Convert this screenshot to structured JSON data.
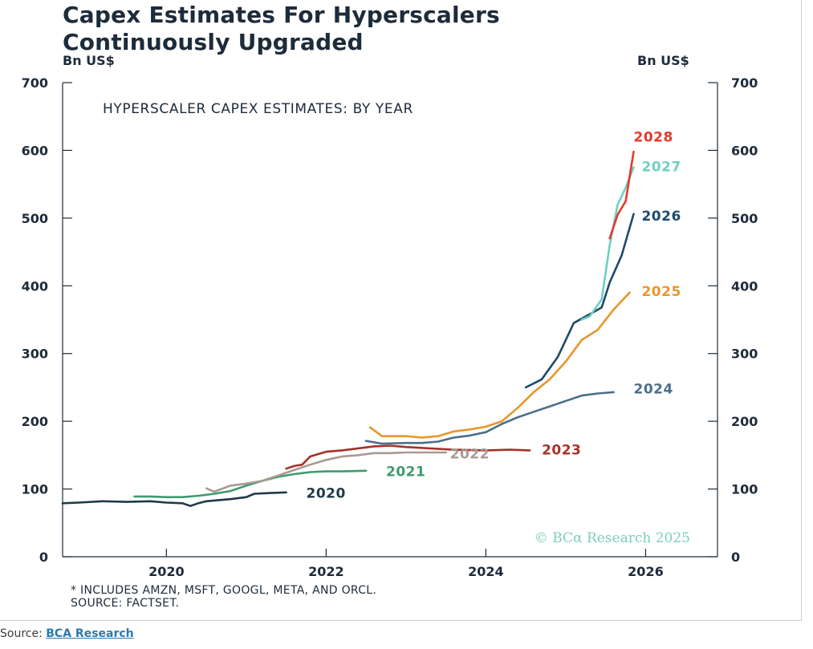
{
  "header": {
    "title_line1": "Capex Estimates For Hyperscalers",
    "title_line2": "Continuously Upgraded",
    "left_unit": "Bn US$",
    "right_unit": "Bn US$"
  },
  "footer": {
    "note_line1": "* INCLUDES AMZN, MSFT, GOOGL, META, AND ORCL.",
    "note_line2": "SOURCE: FACTSET.",
    "source_label": "Source:",
    "source_link": "BCA Research"
  },
  "chart_data": {
    "type": "line",
    "title": "Capex Estimates For Hyperscalers Continuously Upgraded",
    "subtitle": "HYPERSCALER CAPEX ESTIMATES: BY YEAR",
    "ylabel": "Bn US$",
    "xlabel": "",
    "xlim": [
      2018.7,
      2026.9
    ],
    "ylim": [
      0,
      700
    ],
    "x_ticks": [
      2020,
      2022,
      2024,
      2026
    ],
    "y_ticks": [
      0,
      100,
      200,
      300,
      400,
      500,
      600,
      700
    ],
    "grid": false,
    "watermark": "© BCα Research 2025",
    "colors": {
      "2020": "#1e3a47",
      "2021": "#3e9b6e",
      "2022": "#a89a92",
      "2023": "#a3322a",
      "2024": "#4a6f8a",
      "2025": "#e8972a",
      "2026": "#1e4a6b",
      "2027": "#6fd0c0",
      "2028": "#e5392a"
    },
    "series": [
      {
        "name": "2020",
        "x": [
          2018.7,
          2018.9,
          2019.2,
          2019.5,
          2019.8,
          2020.0,
          2020.2,
          2020.3,
          2020.4,
          2020.5,
          2020.8,
          2021.0,
          2021.1,
          2021.3,
          2021.5
        ],
        "y": [
          79,
          80,
          82,
          81,
          82,
          80,
          79,
          75,
          79,
          82,
          85,
          88,
          93,
          94,
          95
        ]
      },
      {
        "name": "2021",
        "x": [
          2019.6,
          2019.8,
          2020.0,
          2020.2,
          2020.4,
          2020.6,
          2020.8,
          2021.0,
          2021.2,
          2021.4,
          2021.6,
          2021.8,
          2022.0,
          2022.2,
          2022.5
        ],
        "y": [
          89,
          89,
          88,
          88,
          90,
          93,
          97,
          105,
          112,
          118,
          122,
          125,
          126,
          126,
          127
        ]
      },
      {
        "name": "2022",
        "x": [
          2020.5,
          2020.6,
          2020.8,
          2021.0,
          2021.2,
          2021.4,
          2021.6,
          2021.8,
          2022.0,
          2022.2,
          2022.4,
          2022.6,
          2022.8,
          2023.0,
          2023.2,
          2023.5
        ],
        "y": [
          101,
          96,
          105,
          108,
          112,
          120,
          128,
          136,
          143,
          148,
          150,
          153,
          153,
          154,
          154,
          154
        ]
      },
      {
        "name": "2023",
        "x": [
          2021.5,
          2021.6,
          2021.7,
          2021.8,
          2022.0,
          2022.2,
          2022.4,
          2022.6,
          2022.8,
          2023.0,
          2023.3,
          2023.6,
          2024.0,
          2024.3,
          2024.55
        ],
        "y": [
          130,
          134,
          136,
          148,
          155,
          157,
          160,
          163,
          164,
          162,
          160,
          158,
          157,
          158,
          157
        ]
      },
      {
        "name": "2024",
        "x": [
          2022.5,
          2022.7,
          2023.0,
          2023.2,
          2023.4,
          2023.6,
          2023.8,
          2024.0,
          2024.2,
          2024.4,
          2024.6,
          2024.8,
          2025.0,
          2025.2,
          2025.4,
          2025.6
        ],
        "y": [
          171,
          167,
          168,
          168,
          170,
          176,
          179,
          184,
          196,
          206,
          214,
          222,
          230,
          238,
          241,
          243
        ]
      },
      {
        "name": "2025",
        "x": [
          2022.55,
          2022.7,
          2023.0,
          2023.2,
          2023.4,
          2023.6,
          2023.8,
          2024.0,
          2024.2,
          2024.4,
          2024.6,
          2024.8,
          2025.0,
          2025.2,
          2025.4,
          2025.6,
          2025.8
        ],
        "y": [
          191,
          178,
          178,
          176,
          178,
          185,
          188,
          192,
          200,
          220,
          243,
          262,
          288,
          320,
          335,
          365,
          390
        ]
      },
      {
        "name": "2026",
        "x": [
          2024.5,
          2024.7,
          2024.9,
          2025.1,
          2025.3,
          2025.45,
          2025.55,
          2025.7,
          2025.85
        ],
        "y": [
          250,
          262,
          295,
          345,
          358,
          368,
          405,
          445,
          506
        ]
      },
      {
        "name": "2027",
        "x": [
          2025.2,
          2025.3,
          2025.45,
          2025.55,
          2025.65,
          2025.75,
          2025.85
        ],
        "y": [
          350,
          355,
          380,
          460,
          520,
          545,
          575
        ]
      },
      {
        "name": "2028",
        "x": [
          2025.55,
          2025.65,
          2025.75,
          2025.85
        ],
        "y": [
          470,
          505,
          525,
          598
        ]
      }
    ],
    "series_labels": [
      {
        "name": "2020",
        "x": 2021.75,
        "y": 87
      },
      {
        "name": "2021",
        "x": 2022.75,
        "y": 119
      },
      {
        "name": "2022",
        "x": 2023.55,
        "y": 145
      },
      {
        "name": "2023",
        "x": 2024.7,
        "y": 151
      },
      {
        "name": "2024",
        "x": 2025.85,
        "y": 241
      },
      {
        "name": "2025",
        "x": 2025.95,
        "y": 385
      },
      {
        "name": "2026",
        "x": 2025.95,
        "y": 496
      },
      {
        "name": "2027",
        "x": 2025.95,
        "y": 569
      },
      {
        "name": "2028",
        "x": 2025.85,
        "y": 613
      }
    ]
  }
}
